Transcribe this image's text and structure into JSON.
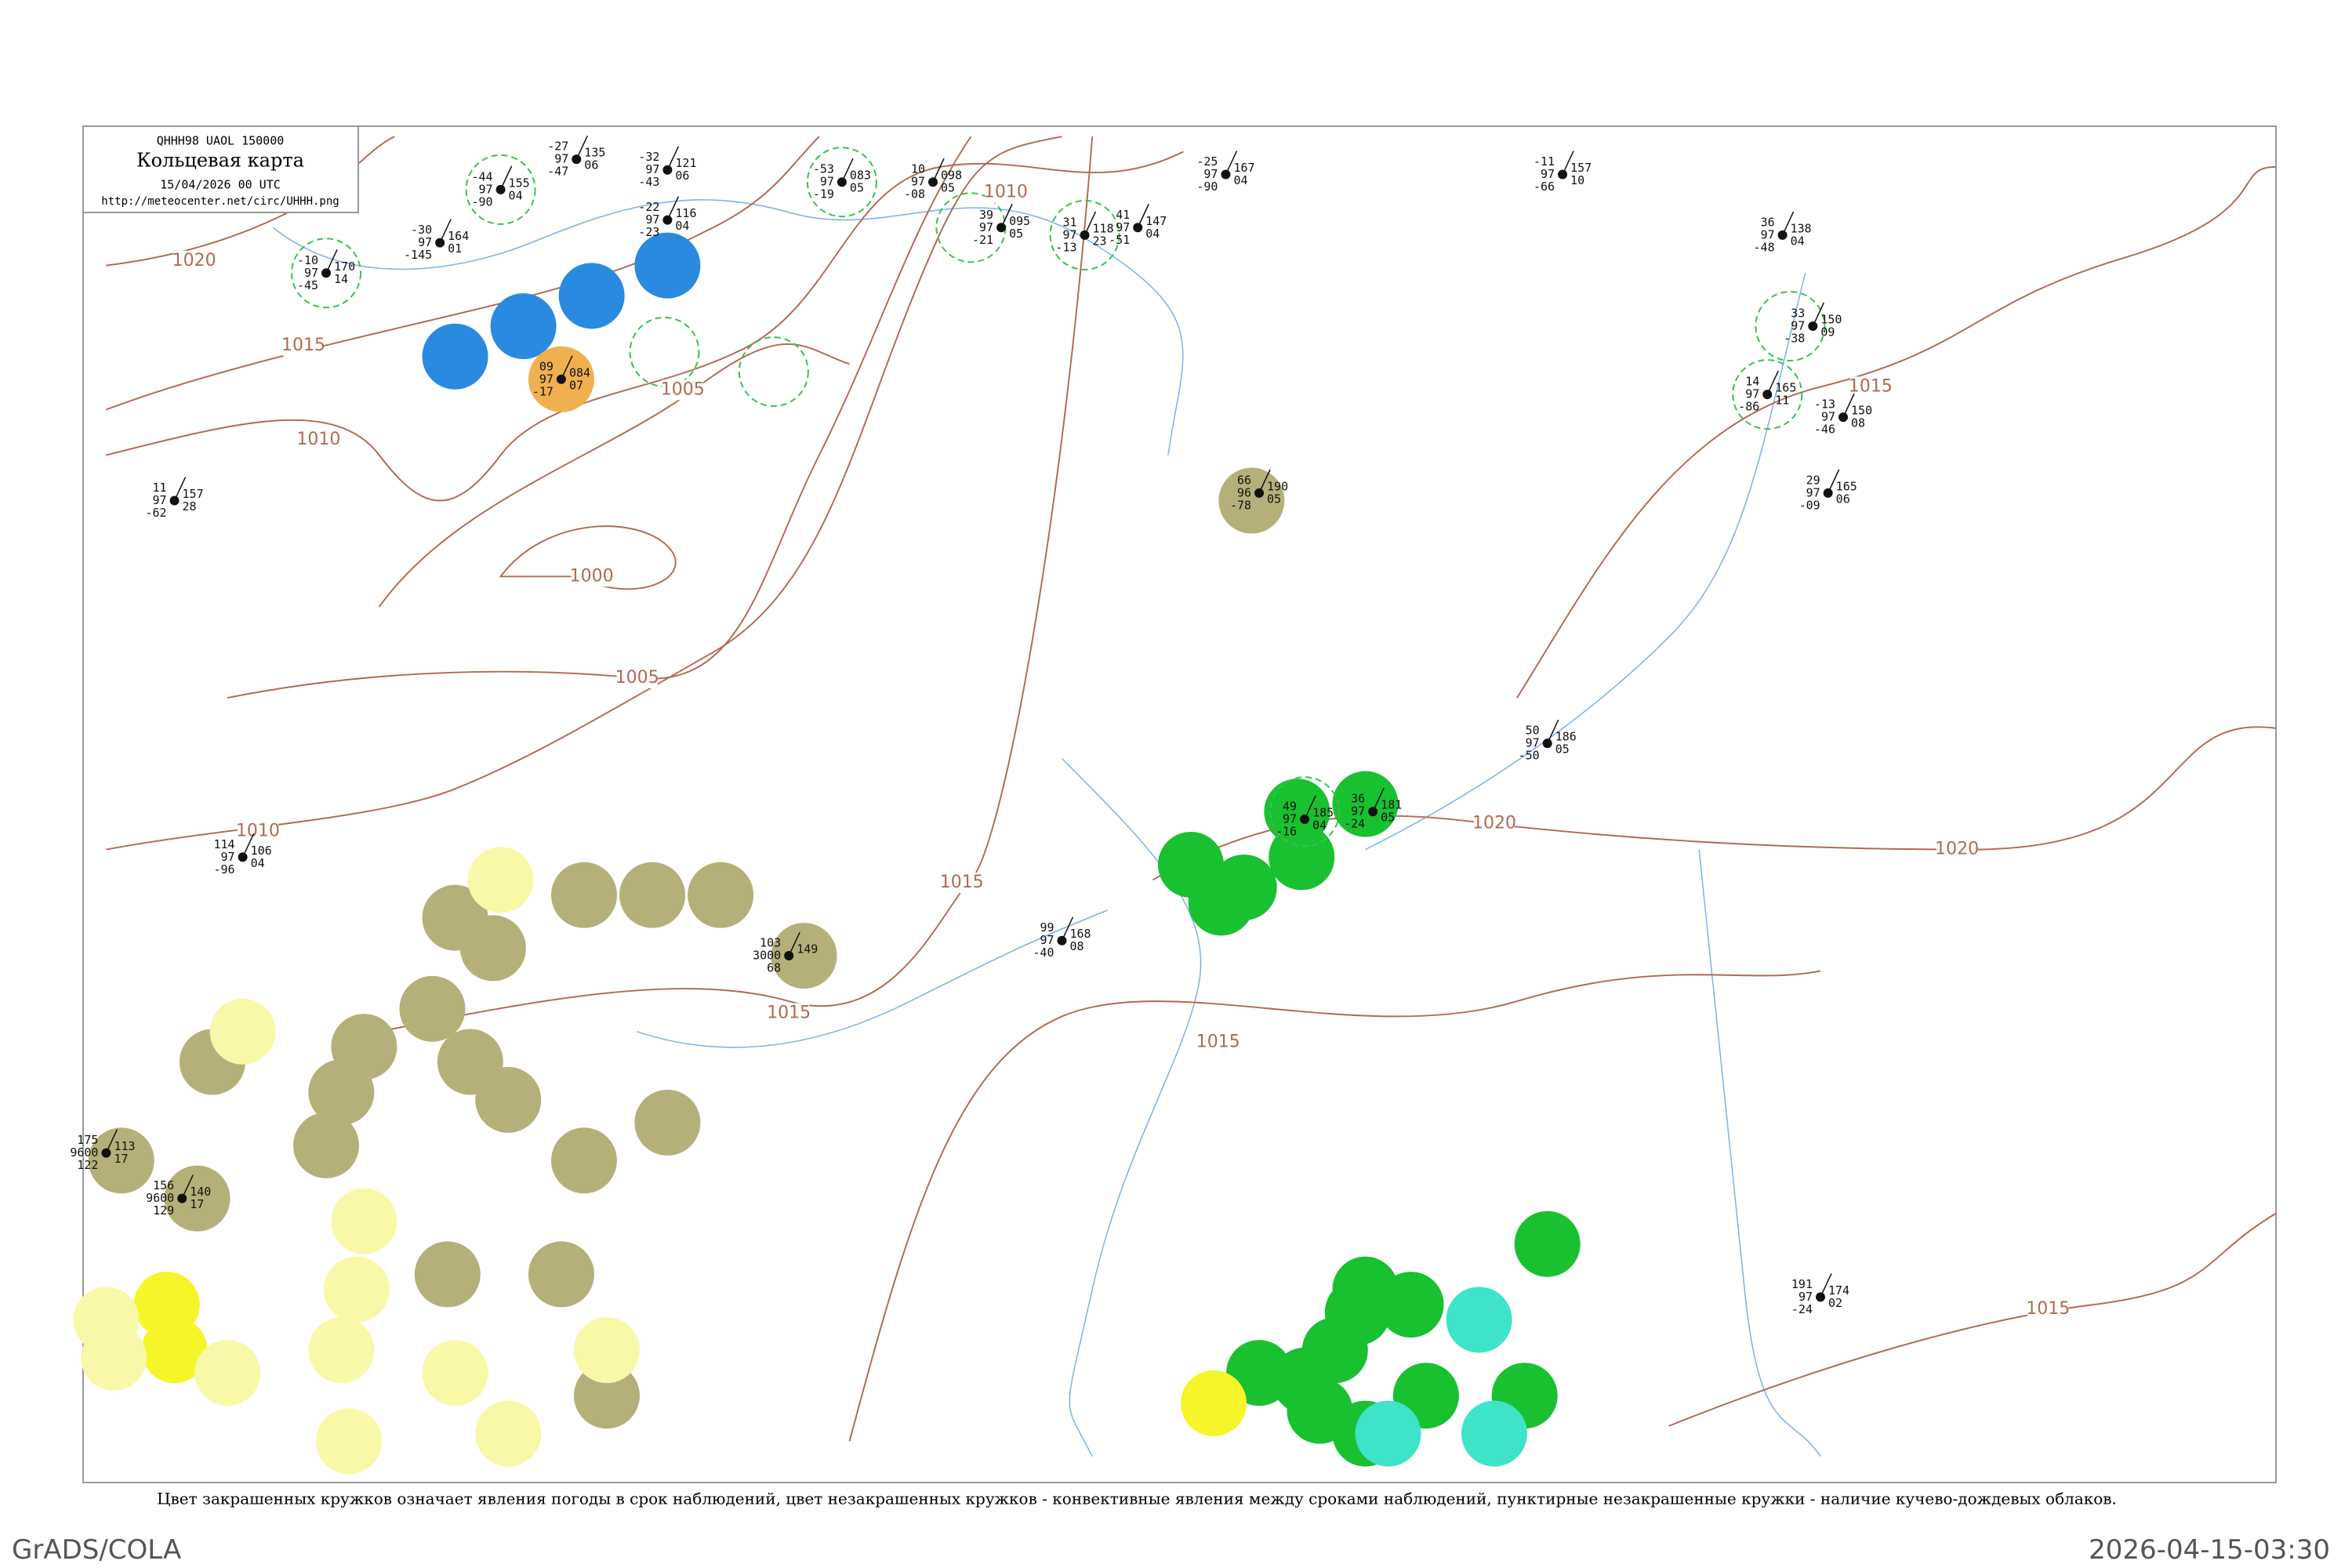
{
  "header": {
    "code": "QHHH98 UAOL 150000",
    "title": "Кольцевая карта",
    "date": "15/04/2026 00 UTC",
    "url": "http://meteocenter.net/circ/UHHH.png"
  },
  "isobars": [
    "1020",
    "1015",
    "1010",
    "1005",
    "1000",
    "1005",
    "1010",
    "1010",
    "1015",
    "1015",
    "1015",
    "1020",
    "1015",
    "1020",
    "1015"
  ],
  "stations": [
    {
      "left": [
        "-44",
        "97",
        "-90"
      ],
      "right": [
        "155",
        "04"
      ]
    },
    {
      "left": [
        "-27",
        "97",
        "-47"
      ],
      "right": [
        "135",
        "06"
      ]
    },
    {
      "left": [
        "-32",
        "97",
        "-43"
      ],
      "right": [
        "121",
        "06"
      ]
    },
    {
      "left": [
        "-22",
        "97",
        "-23"
      ],
      "right": [
        "116",
        "04"
      ]
    },
    {
      "left": [
        "-30",
        "97",
        "-145"
      ],
      "right": [
        "164",
        "01"
      ]
    },
    {
      "left": [
        "-10",
        "97",
        "-45"
      ],
      "right": [
        "170",
        "14"
      ]
    },
    {
      "left": [
        "-53",
        "97",
        "-19"
      ],
      "right": [
        "083",
        "05"
      ]
    },
    {
      "left": [
        "10",
        "97",
        "-08"
      ],
      "right": [
        "098",
        "05"
      ]
    },
    {
      "left": [
        "39",
        "97",
        "-21"
      ],
      "right": [
        "095",
        "05"
      ]
    },
    {
      "left": [
        "31",
        "97",
        "-13"
      ],
      "right": [
        "118",
        "23"
      ]
    },
    {
      "left": [
        "41",
        "97",
        "-51"
      ],
      "right": [
        "147",
        "04"
      ]
    },
    {
      "left": [
        "-25",
        "97",
        "-90"
      ],
      "right": [
        "167",
        "04"
      ]
    },
    {
      "left": [
        "-11",
        "97",
        "-66"
      ],
      "right": [
        "157",
        "10"
      ]
    },
    {
      "left": [
        "36",
        "97",
        "-48"
      ],
      "right": [
        "138",
        "04"
      ]
    },
    {
      "left": [
        "33",
        "97",
        "-38"
      ],
      "right": [
        "150",
        "09"
      ]
    },
    {
      "left": [
        "14",
        "97",
        "-86"
      ],
      "right": [
        "165",
        "11"
      ]
    },
    {
      "left": [
        "-13",
        "97",
        "-46"
      ],
      "right": [
        "150",
        "08"
      ]
    },
    {
      "left": [
        "29",
        "97",
        "-09"
      ],
      "right": [
        "165",
        "06"
      ]
    },
    {
      "left": [
        "66",
        "96",
        "-78"
      ],
      "right": [
        "190",
        "05"
      ]
    },
    {
      "left": [
        "09",
        "97",
        "-17"
      ],
      "right": [
        "084",
        "07"
      ]
    },
    {
      "left": [
        "11",
        "97",
        "-62"
      ],
      "right": [
        "157",
        "28"
      ]
    },
    {
      "left": [
        "114",
        "97",
        "-96"
      ],
      "right": [
        "106",
        "04"
      ]
    },
    {
      "left": [
        "175",
        "9600",
        "122"
      ],
      "right": [
        "113",
        "17"
      ]
    },
    {
      "left": [
        "156",
        "9600",
        "129"
      ],
      "right": [
        "140",
        "17"
      ]
    },
    {
      "left": [
        "103",
        "3000",
        "68"
      ],
      "right": [
        "149"
      ]
    },
    {
      "left": [
        "49",
        "97",
        "-16"
      ],
      "right": [
        "185",
        "04"
      ]
    },
    {
      "left": [
        "36",
        "97",
        "-24"
      ],
      "right": [
        "181",
        "05"
      ]
    },
    {
      "left": [
        "50",
        "97",
        "-50"
      ],
      "right": [
        "186",
        "05"
      ]
    },
    {
      "left": [
        "191",
        "97",
        "-24"
      ],
      "right": [
        "174",
        "02"
      ]
    },
    {
      "left": [
        "99",
        "97",
        "-40"
      ],
      "right": [
        "168",
        "08"
      ]
    }
  ],
  "caption": "Цвет закрашенных кружков означает явления погоды в срок наблюдений, цвет незакрашенных кружков - конвективные явления между сроками наблюдений, пунктирные незакрашенные кружки - наличие кучево-дождевых облаков.",
  "credit": "GrADS/COLA",
  "timestamp": "2026-04-15-03:30"
}
